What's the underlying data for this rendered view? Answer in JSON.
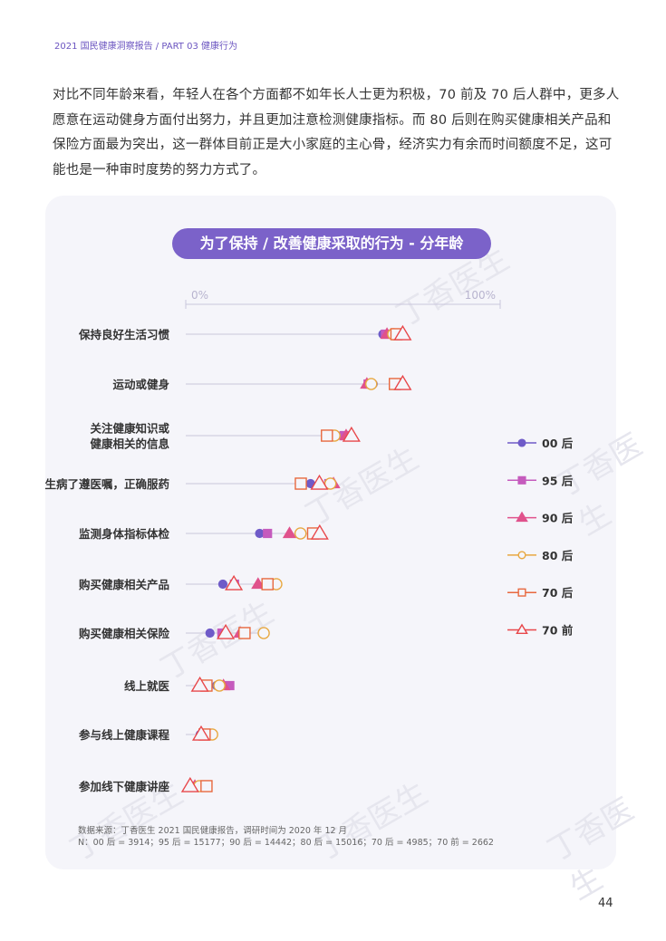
{
  "header": "2021 国民健康洞察报告 / PART 03 健康行为",
  "paragraph": "对比不同年龄来看，年轻人在各个方面都不如年长人士更为积极，70 前及 70 后人群中，更多人愿意在运动健身方面付出努力，并且更加注意检测健康指标。而 80 后则在购买健康相关产品和保险方面最为突出，这一群体目前正是大小家庭的主心骨，经济实力有余而时间额度不足，这可能也是一种审时度势的努力方式了。",
  "watermark": "丁香医生",
  "chart_data": {
    "type": "scatter",
    "title": "为了保持 / 改善健康采取的行为 - 分年龄",
    "xlim": [
      0,
      100
    ],
    "tick_labels": [
      "0%",
      "100%"
    ],
    "legend_placement": "right",
    "categories": [
      "保持良好生活习惯",
      "运动或健身",
      "关注健康知识或\n健康相关的信息",
      "生病了遵医嘱，正确服药",
      "监测身体指标体检",
      "购买健康相关产品",
      "购买健康相关保险",
      "线上就医",
      "参与线上健康课程",
      "参加线下健康讲座"
    ],
    "series": [
      {
        "name": "00 后",
        "marker": "circle-filled",
        "color": "#6f5bc8",
        "values": [
          62.7,
          59.6,
          49.6,
          39.7,
          23.5,
          11.8,
          7.7,
          9.8,
          4.6,
          3.2
        ]
      },
      {
        "name": "95 后",
        "marker": "square-filled",
        "color": "#c55bbd",
        "values": [
          63.5,
          58,
          50.4,
          45.5,
          26,
          15.5,
          11.5,
          14,
          5.5,
          3.7
        ]
      },
      {
        "name": "90 后",
        "marker": "triangle-filled",
        "color": "#e0528c",
        "values": [
          64,
          57.6,
          51,
          47,
          33,
          23,
          17.3,
          12,
          5.2,
          2.9
        ]
      },
      {
        "name": "80 后",
        "marker": "circle-hollow",
        "color": "#e8a840",
        "values": [
          66,
          59,
          47.3,
          46,
          36.5,
          28.8,
          24.8,
          10.7,
          8.4,
          4.3
        ]
      },
      {
        "name": "70 后",
        "marker": "square-hollow",
        "color": "#e8683e",
        "values": [
          67,
          66.5,
          44.9,
          36.6,
          40.5,
          26,
          18.7,
          6.6,
          6,
          6.6
        ]
      },
      {
        "name": "70 前",
        "marker": "triangle-hollow",
        "color": "#e8474a",
        "values": [
          69,
          69,
          52.7,
          42.5,
          42.6,
          15.3,
          12.7,
          4.5,
          4.9,
          1.4
        ]
      }
    ]
  },
  "source_lines": [
    "数据来源：丁香医生 2021 国民健康报告，调研时间为 2020 年 12 月",
    "N：00 后 = 3914；95 后 = 15177；90 后 = 14442；80 后 = 15016；70 后 = 4985；70 前 = 2662"
  ],
  "page_number": "44"
}
